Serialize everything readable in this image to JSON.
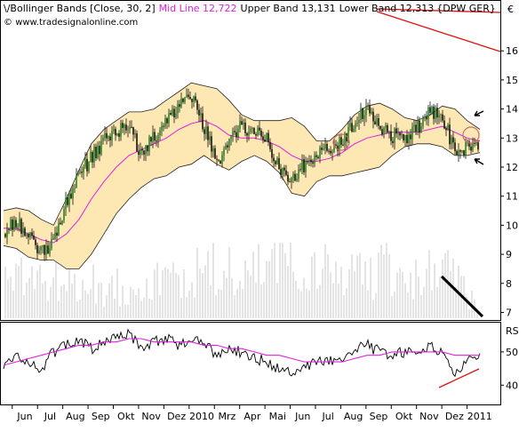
{
  "header": {
    "study_label": "Bollinger Bands [Close, 30, 2]",
    "mid_line_label": "Mid Line 12,722",
    "upper_band_label": "Upper Band 13,131",
    "lower_band_label": "Lower Band 12,313",
    "symbol_label": "{DPW GER}",
    "source": "www.tradesignalonline.com"
  },
  "colors": {
    "band_fill": "#fde8b4",
    "band_edge": "#222222",
    "mid_line": "#e020e0",
    "candle_up": "#1f8a1f",
    "candle_down": "#111111",
    "volume": "#c8c8c8",
    "rs_line": "#000000",
    "rs_avg": "#e020e0",
    "annotation_red": "#e01010",
    "annotation_black": "#000000",
    "frame": "#000000"
  },
  "chart_data": [
    {
      "type": "candlestick",
      "title": "Bollinger Bands [Close, 30, 2]",
      "symbol": "DPW GER",
      "currency_label": "€",
      "ylim": [
        6.8,
        17.2
      ],
      "y_ticks": [
        7,
        8,
        9,
        10,
        11,
        12,
        13,
        14,
        15,
        16
      ],
      "x_ticks": [
        "Jun",
        "Jul",
        "Aug",
        "Sep",
        "Okt",
        "Nov",
        "Dez",
        "2010",
        "Mrz",
        "Apr",
        "Mai",
        "Jun",
        "Jul",
        "Aug",
        "Sep",
        "Okt",
        "Nov",
        "Dez",
        "2011"
      ],
      "x": [
        0,
        3.2,
        6.3,
        9.5,
        12.6,
        15.8,
        19,
        22.1,
        25.3,
        28.4,
        31.6,
        34.7,
        37.9,
        41,
        44.2,
        47.3,
        50.5,
        53.7,
        56.8,
        60,
        63.2,
        66.3,
        69.5,
        72.6,
        75.8,
        78.9,
        82.1,
        85.3,
        88.4,
        91.6,
        94.7,
        97.9,
        101.1,
        104.2,
        107.4,
        110.5,
        113.7,
        116.8,
        120
      ],
      "close": [
        9.7,
        10.2,
        9.6,
        9.0,
        9.5,
        10.8,
        11.8,
        12.3,
        12.9,
        13.2,
        13.5,
        12.4,
        13.0,
        13.7,
        14.0,
        14.5,
        13.4,
        12.1,
        12.8,
        13.4,
        13.2,
        12.9,
        12.0,
        11.6,
        12.1,
        12.4,
        12.6,
        12.9,
        13.6,
        13.9,
        13.4,
        13.1,
        13.0,
        13.3,
        13.9,
        13.7,
        12.6,
        12.7,
        12.9
      ],
      "mid": [
        9.9,
        9.9,
        9.7,
        9.5,
        9.4,
        9.7,
        10.2,
        10.9,
        11.5,
        12.0,
        12.4,
        12.6,
        12.8,
        13.0,
        13.3,
        13.5,
        13.6,
        13.4,
        13.1,
        13.0,
        13.0,
        12.9,
        12.7,
        12.4,
        12.2,
        12.2,
        12.3,
        12.5,
        12.8,
        13.0,
        13.1,
        13.2,
        13.2,
        13.2,
        13.3,
        13.4,
        13.2,
        13.0,
        12.9
      ],
      "upper": [
        10.5,
        10.6,
        10.5,
        10.2,
        10.0,
        10.9,
        11.9,
        12.8,
        13.3,
        13.6,
        13.9,
        13.9,
        14.0,
        14.3,
        14.6,
        14.9,
        14.8,
        14.7,
        14.3,
        13.8,
        13.6,
        13.6,
        13.6,
        13.7,
        13.4,
        12.9,
        12.9,
        13.3,
        13.8,
        14.1,
        14.2,
        14.0,
        13.7,
        13.6,
        13.8,
        14.1,
        14.0,
        13.6,
        13.3
      ],
      "lower": [
        9.3,
        9.2,
        8.9,
        8.8,
        8.8,
        8.5,
        8.5,
        9.0,
        9.7,
        10.4,
        10.9,
        11.3,
        11.6,
        11.7,
        12.0,
        12.1,
        12.4,
        12.1,
        11.9,
        12.2,
        12.4,
        12.2,
        11.8,
        11.1,
        11.0,
        11.5,
        11.7,
        11.7,
        11.8,
        11.9,
        12.0,
        12.4,
        12.7,
        12.8,
        12.8,
        12.7,
        12.4,
        12.4,
        12.5
      ],
      "volume_relative": [
        0.3,
        0.25,
        0.35,
        0.28,
        0.3,
        0.26,
        0.24,
        0.27,
        0.22,
        0.25,
        0.23,
        0.3,
        0.26,
        0.28,
        0.32,
        0.3,
        0.35,
        0.38,
        0.33,
        0.3,
        0.36,
        0.4,
        0.45,
        0.52,
        0.4,
        0.36,
        0.33,
        0.32,
        0.38,
        0.3,
        0.34,
        0.36,
        0.3,
        0.28,
        0.33,
        0.35,
        0.3,
        0.18,
        0.15
      ]
    },
    {
      "type": "line",
      "title": "RS",
      "ylim": [
        35,
        58
      ],
      "y_ticks": [
        40,
        50
      ],
      "x": [
        0,
        3.2,
        6.3,
        9.5,
        12.6,
        15.8,
        19,
        22.1,
        25.3,
        28.4,
        31.6,
        34.7,
        37.9,
        41,
        44.2,
        47.3,
        50.5,
        53.7,
        56.8,
        60,
        63.2,
        66.3,
        69.5,
        72.6,
        75.8,
        78.9,
        82.1,
        85.3,
        88.4,
        91.6,
        94.7,
        97.9,
        101.1,
        104.2,
        107.4,
        110.5,
        113.7,
        116.8,
        120
      ],
      "series": [
        {
          "values": [
            46,
            49,
            47,
            45,
            50,
            52,
            54,
            51,
            53,
            55,
            56,
            51,
            53,
            54,
            52,
            54,
            53,
            49,
            51,
            50,
            48,
            47,
            45,
            44,
            46,
            47,
            47,
            48,
            51,
            52,
            50,
            49,
            50,
            51,
            52,
            50,
            44,
            47,
            50
          ]
        },
        {
          "values": [
            46,
            47,
            48,
            49,
            50,
            51,
            52,
            52,
            53,
            53,
            54,
            54,
            53,
            53,
            53,
            53,
            52,
            52,
            51,
            51,
            50,
            49,
            49,
            48,
            47,
            47,
            47,
            47,
            48,
            49,
            49,
            50,
            50,
            50,
            50,
            50,
            49,
            49,
            49
          ]
        }
      ]
    }
  ]
}
